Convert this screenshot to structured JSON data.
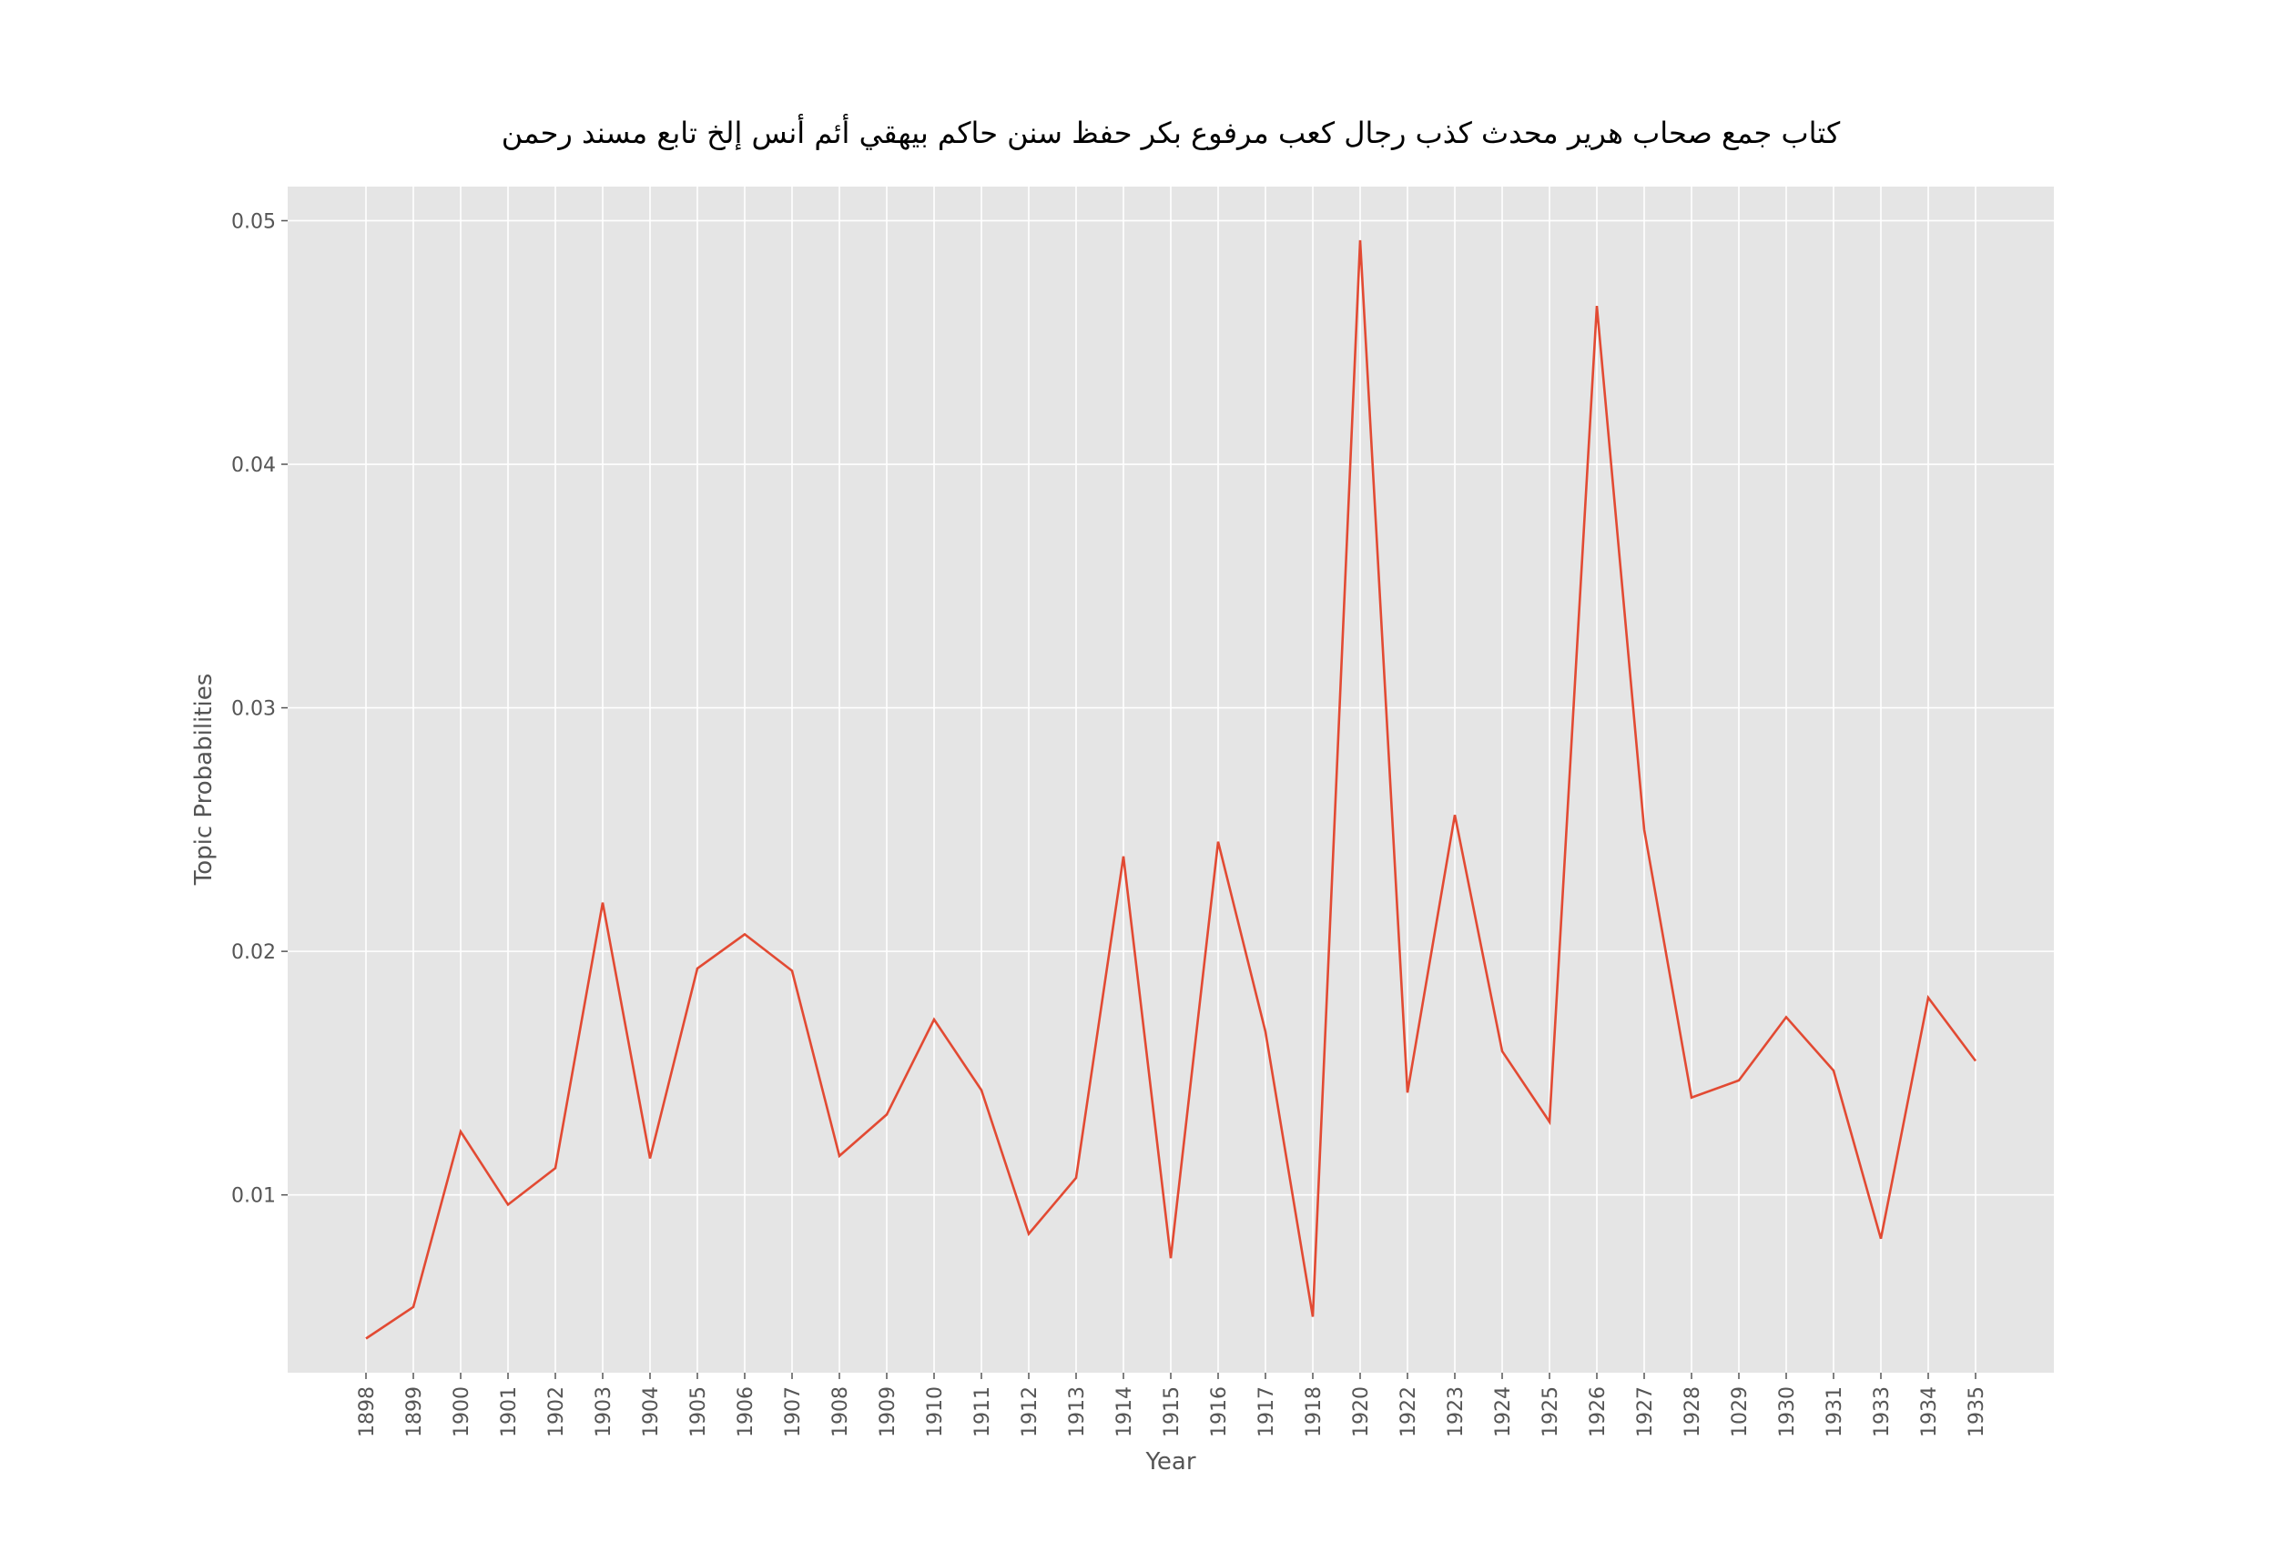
{
  "chart_data": {
    "type": "line",
    "title": "كتاب جمع صحاب هرير محدث كذب رجال كعب مرفوع بكر حفظ سنن حاكم بيهقي أئم أنس إلخ تابع مسند رحمن",
    "xlabel": "Year",
    "ylabel": "Topic Probabilities",
    "grid": true,
    "ylim": [
      0.0027,
      0.0514
    ],
    "y_ticks": [
      "0.01",
      "0.02",
      "0.03",
      "0.04",
      "0.05"
    ],
    "categories": [
      "1898",
      "1899",
      "1900",
      "1901",
      "1902",
      "1903",
      "1904",
      "1905",
      "1906",
      "1907",
      "1908",
      "1909",
      "1910",
      "1911",
      "1912",
      "1913",
      "1914",
      "1915",
      "1916",
      "1917",
      "1918",
      "1920",
      "1922",
      "1923",
      "1924",
      "1925",
      "1926",
      "1927",
      "1928",
      "1029",
      "1930",
      "1931",
      "1933",
      "1934",
      "1935"
    ],
    "series": [
      {
        "color": "#e24a33",
        "values": [
          0.0041,
          0.0054,
          0.0126,
          0.0096,
          0.0111,
          0.022,
          0.0115,
          0.0193,
          0.0207,
          0.0192,
          0.0116,
          0.0133,
          0.0172,
          0.0143,
          0.0084,
          0.0107,
          0.0239,
          0.0074,
          0.0245,
          0.0167,
          0.005,
          0.0492,
          0.0142,
          0.0256,
          0.0159,
          0.013,
          0.0465,
          0.025,
          0.014,
          0.0147,
          0.0173,
          0.0151,
          0.0082,
          0.0181,
          0.0155
        ]
      }
    ]
  }
}
